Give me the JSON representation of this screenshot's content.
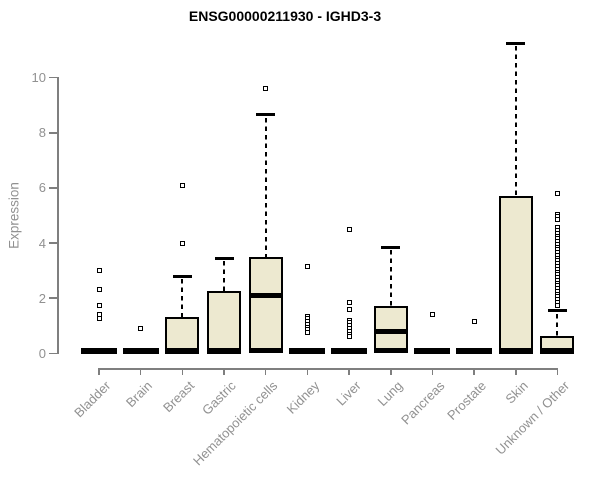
{
  "chart_data": {
    "type": "boxplot",
    "title": "ENSG00000211930 - IGHD3-3",
    "xlabel": "",
    "ylabel": "Expression",
    "ylim": [
      0,
      10
    ],
    "yticks": [
      0,
      2,
      4,
      6,
      8,
      10
    ],
    "grid": false,
    "legend": "none",
    "box_fill_color": "#EDE9D0",
    "box_line_color": "#000000",
    "axis_text_color": "#919191",
    "categories": [
      "Bladder",
      "Brain",
      "Breast",
      "Gastric",
      "Hematopoietic cells",
      "Kidney",
      "Liver",
      "Lung",
      "Pancreas",
      "Prostate",
      "Skin",
      "Unknown / Other"
    ],
    "boxes": [
      {
        "label": "Bladder",
        "min": 0,
        "q1": 0,
        "median": 0,
        "q3": 0,
        "whisker_high": 0,
        "outliers": [
          3.0,
          2.3,
          1.75,
          1.4,
          1.27
        ]
      },
      {
        "label": "Brain",
        "min": 0,
        "q1": 0,
        "median": 0,
        "q3": 0,
        "whisker_high": 0,
        "outliers": [
          0.9
        ]
      },
      {
        "label": "Breast",
        "min": 0,
        "q1": 0,
        "median": 0.05,
        "q3": 1.3,
        "whisker_high": 2.8,
        "outliers": [
          6.1,
          4.0
        ]
      },
      {
        "label": "Gastric",
        "min": 0,
        "q1": 0,
        "median": 0.05,
        "q3": 2.25,
        "whisker_high": 3.45,
        "outliers": []
      },
      {
        "label": "Hematopoietic cells",
        "min": 0,
        "q1": 0,
        "median": 2.1,
        "q3": 3.5,
        "whisker_high": 8.65,
        "outliers": [
          9.6
        ]
      },
      {
        "label": "Kidney",
        "min": 0,
        "q1": 0,
        "median": 0,
        "q3": 0,
        "whisker_high": 0,
        "outliers": [
          3.15,
          1.35,
          1.25,
          1.15,
          1.05,
          0.95,
          0.85,
          0.75
        ]
      },
      {
        "label": "Liver",
        "min": 0,
        "q1": 0,
        "median": 0,
        "q3": 0,
        "whisker_high": 0,
        "outliers": [
          4.5,
          1.85,
          1.6,
          1.2,
          1.1,
          1.0,
          0.9,
          0.8,
          0.7,
          0.6
        ]
      },
      {
        "label": "Lung",
        "min": 0,
        "q1": 0,
        "median": 0.78,
        "q3": 1.72,
        "whisker_high": 3.85,
        "outliers": []
      },
      {
        "label": "Pancreas",
        "min": 0,
        "q1": 0,
        "median": 0,
        "q3": 0,
        "whisker_high": 0,
        "outliers": [
          1.4
        ]
      },
      {
        "label": "Prostate",
        "min": 0,
        "q1": 0,
        "median": 0,
        "q3": 0,
        "whisker_high": 0,
        "outliers": [
          1.15
        ]
      },
      {
        "label": "Skin",
        "min": 0,
        "q1": 0,
        "median": 0.05,
        "q3": 5.7,
        "whisker_high": 11.25,
        "outliers": []
      },
      {
        "label": "Unknown / Other",
        "min": 0,
        "q1": 0,
        "median": 0.05,
        "q3": 0.62,
        "whisker_high": 1.55,
        "outliers": [
          5.8,
          5.05,
          4.95,
          4.85,
          4.55,
          4.45,
          4.35,
          4.25,
          4.15,
          4.05,
          3.95,
          3.85,
          3.75,
          3.65,
          3.55,
          3.45,
          3.35,
          3.25,
          3.15,
          3.05,
          2.95,
          2.85,
          2.75,
          2.65,
          2.55,
          2.45,
          2.35,
          2.25,
          2.15,
          2.05,
          1.95,
          1.85,
          1.75
        ]
      }
    ]
  }
}
